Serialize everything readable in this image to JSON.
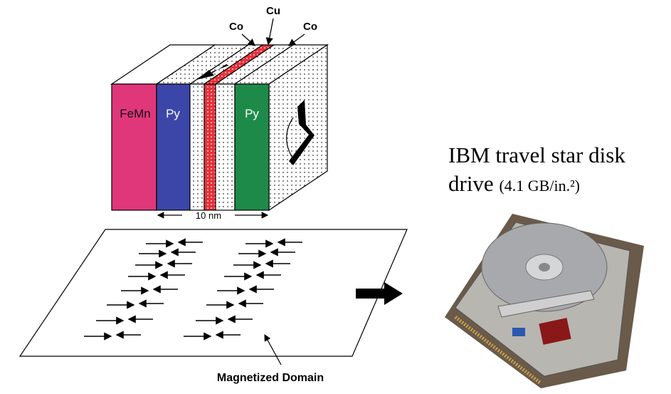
{
  "labels": {
    "co_left": "Co",
    "cu": "Cu",
    "co_right": "Co"
  },
  "layers": {
    "femn": "FeMn",
    "py_left": "Py",
    "py_right": "Py"
  },
  "thickness": "10 nm",
  "plane_label": "Magnetized Domain",
  "caption": {
    "line1": "IBM travel star disk",
    "line2": "drive",
    "spec": "(4.1 GB/in.²)"
  }
}
